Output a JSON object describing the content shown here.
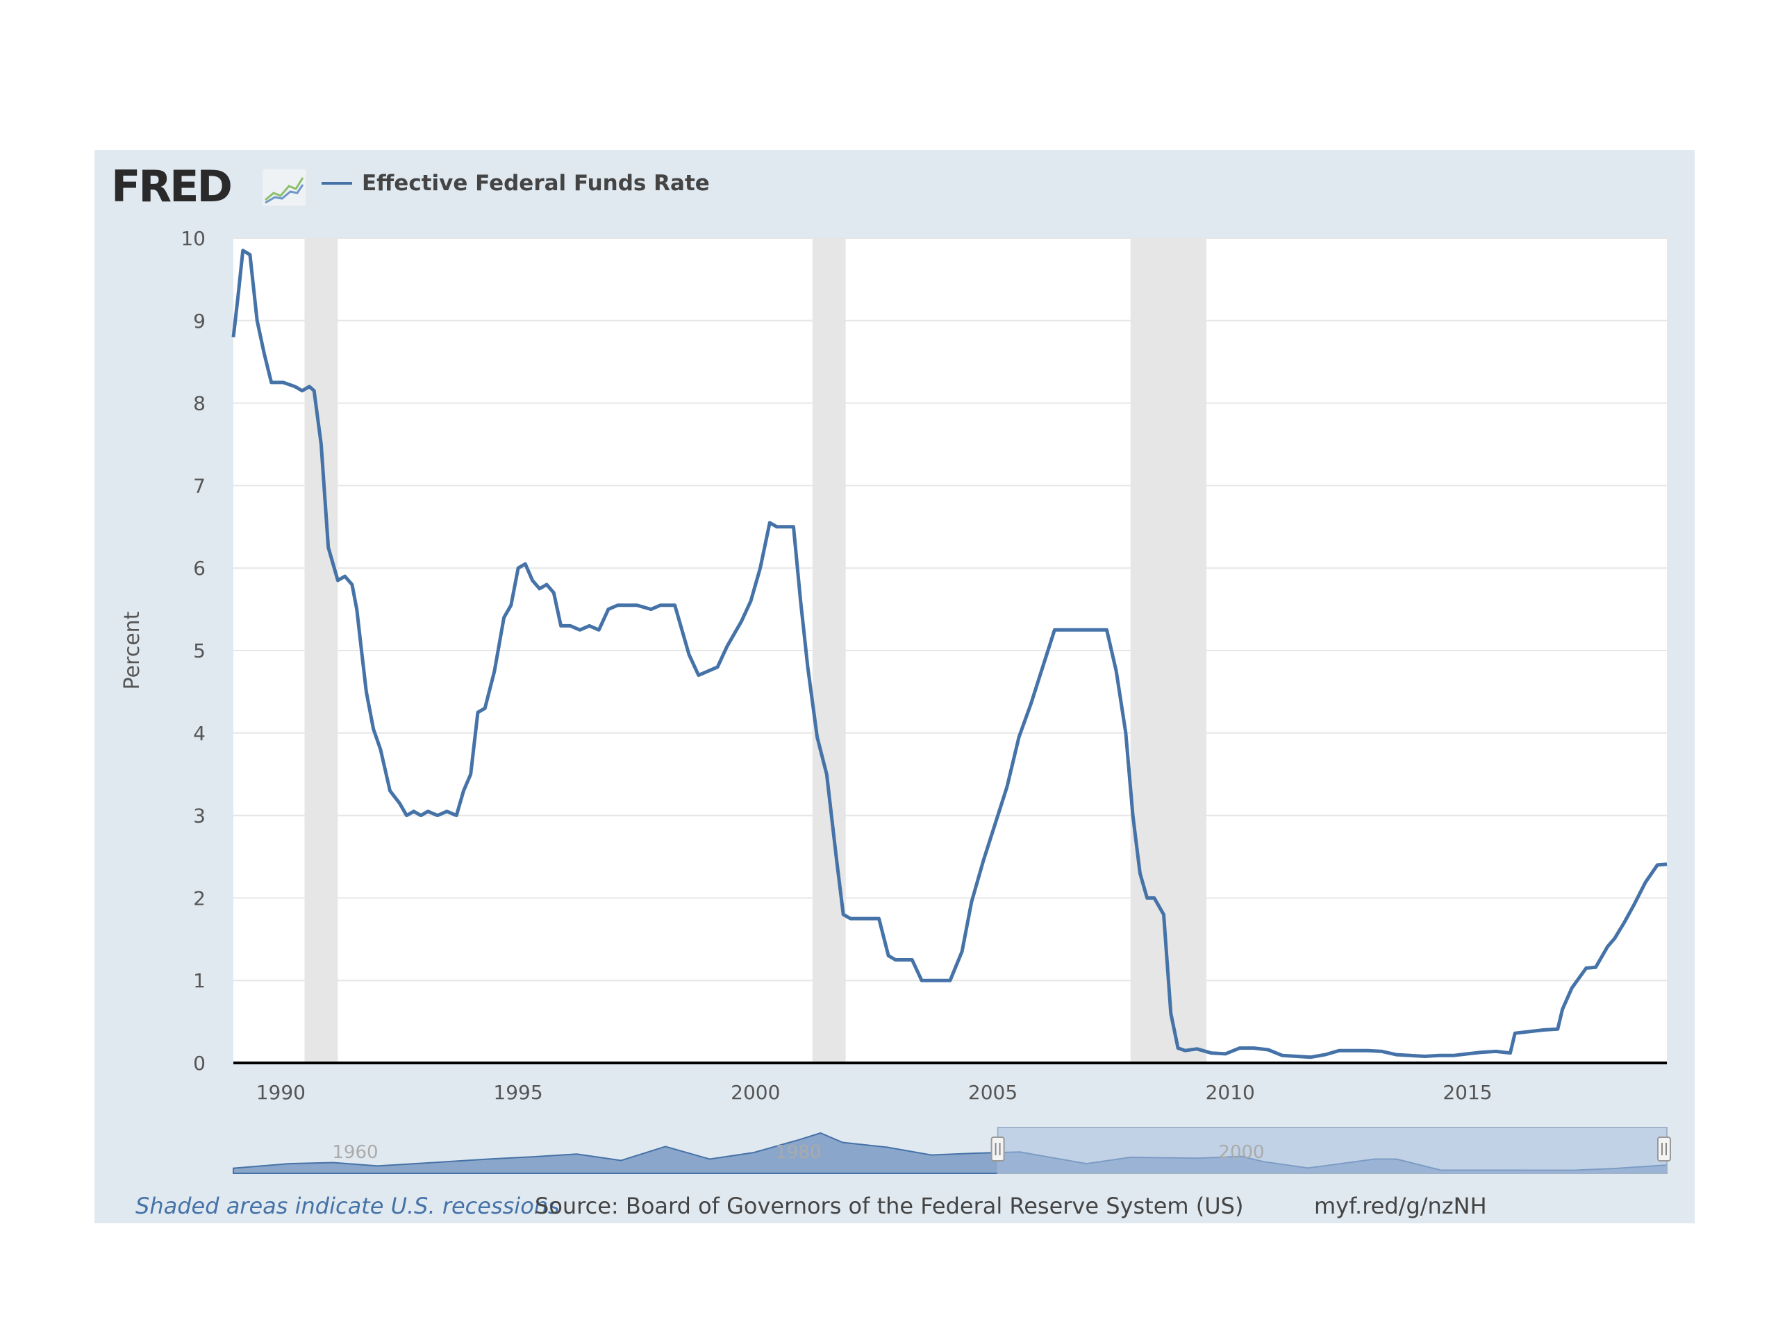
{
  "brand": {
    "logo_text": "FRED",
    "logo_icon": "fred-graph-icon"
  },
  "colors": {
    "line": "#4572a7",
    "panel": "#e1e9f0",
    "recession": "#e6e6e6",
    "navigator_fill": "#6d8fbf",
    "navigator_window": "#a9bfdf"
  },
  "legend": {
    "series_label": "Effective Federal Funds Rate"
  },
  "chart_data": {
    "type": "line",
    "ylabel": "Percent",
    "ylim": [
      0,
      10
    ],
    "yticks": [
      "0",
      "1",
      "2",
      "3",
      "4",
      "5",
      "6",
      "7",
      "8",
      "9",
      "10"
    ],
    "xlim": [
      1989.0,
      2019.2
    ],
    "xticks": [
      "1990",
      "1995",
      "2000",
      "2005",
      "2010",
      "2015"
    ],
    "grid": true,
    "recessions": [
      [
        1990.5,
        1991.2
      ],
      [
        2001.2,
        2001.9
      ],
      [
        2007.9,
        2009.5
      ]
    ],
    "series": [
      {
        "name": "Effective Federal Funds Rate",
        "x": [
          1989.0,
          1989.1,
          1989.2,
          1989.35,
          1989.5,
          1989.65,
          1989.8,
          1989.95,
          1990.05,
          1990.3,
          1990.45,
          1990.6,
          1990.7,
          1990.85,
          1991.0,
          1991.2,
          1991.35,
          1991.5,
          1991.6,
          1991.7,
          1991.8,
          1991.95,
          1992.1,
          1992.3,
          1992.5,
          1992.65,
          1992.8,
          1992.95,
          1993.1,
          1993.3,
          1993.5,
          1993.7,
          1993.85,
          1994.0,
          1994.15,
          1994.3,
          1994.5,
          1994.7,
          1994.85,
          1995.0,
          1995.15,
          1995.3,
          1995.45,
          1995.6,
          1995.75,
          1995.9,
          1996.1,
          1996.3,
          1996.5,
          1996.7,
          1996.9,
          1997.1,
          1997.3,
          1997.5,
          1997.8,
          1998.0,
          1998.3,
          1998.6,
          1998.8,
          1999.0,
          1999.2,
          1999.4,
          1999.55,
          1999.7,
          1999.9,
          2000.1,
          2000.3,
          2000.45,
          2000.6,
          2000.8,
          2000.95,
          2001.1,
          2001.3,
          2001.5,
          2001.7,
          2001.85,
          2002.0,
          2002.2,
          2002.4,
          2002.6,
          2002.8,
          2002.95,
          2003.1,
          2003.3,
          2003.5,
          2003.7,
          2003.9,
          2004.1,
          2004.35,
          2004.55,
          2004.8,
          2005.05,
          2005.3,
          2005.55,
          2005.8,
          2006.05,
          2006.3,
          2006.5,
          2006.8,
          2007.1,
          2007.4,
          2007.6,
          2007.8,
          2007.95,
          2008.1,
          2008.25,
          2008.4,
          2008.6,
          2008.75,
          2008.9,
          2009.05,
          2009.3,
          2009.6,
          2009.9,
          2010.2,
          2010.5,
          2010.8,
          2011.1,
          2011.4,
          2011.7,
          2012.0,
          2012.3,
          2012.6,
          2012.9,
          2013.2,
          2013.5,
          2013.8,
          2014.1,
          2014.4,
          2014.7,
          2015.0,
          2015.3,
          2015.6,
          2015.9,
          2016.0,
          2016.3,
          2016.6,
          2016.9,
          2017.0,
          2017.2,
          2017.5,
          2017.7,
          2017.95,
          2018.1,
          2018.3,
          2018.5,
          2018.75,
          2019.0,
          2019.2
        ],
        "values": [
          8.8,
          9.3,
          9.85,
          9.8,
          9.0,
          8.6,
          8.25,
          8.25,
          8.25,
          8.2,
          8.15,
          8.2,
          8.15,
          7.5,
          6.25,
          5.85,
          5.9,
          5.8,
          5.5,
          5.0,
          4.5,
          4.05,
          3.8,
          3.3,
          3.15,
          3.0,
          3.05,
          3.0,
          3.05,
          3.0,
          3.05,
          3.0,
          3.3,
          3.5,
          4.25,
          4.3,
          4.75,
          5.4,
          5.55,
          6.0,
          6.05,
          5.85,
          5.75,
          5.8,
          5.7,
          5.3,
          5.3,
          5.25,
          5.3,
          5.25,
          5.5,
          5.55,
          5.55,
          5.55,
          5.5,
          5.55,
          5.55,
          4.95,
          4.7,
          4.75,
          4.8,
          5.05,
          5.2,
          5.35,
          5.6,
          6.0,
          6.55,
          6.5,
          6.5,
          6.5,
          5.6,
          4.8,
          3.95,
          3.5,
          2.5,
          1.8,
          1.75,
          1.75,
          1.75,
          1.75,
          1.3,
          1.25,
          1.25,
          1.25,
          1.0,
          1.0,
          1.0,
          1.0,
          1.35,
          1.95,
          2.45,
          2.9,
          3.35,
          3.95,
          4.35,
          4.8,
          5.25,
          5.25,
          5.25,
          5.25,
          5.25,
          4.75,
          4.0,
          3.0,
          2.3,
          2.0,
          2.0,
          1.8,
          0.6,
          0.18,
          0.15,
          0.17,
          0.12,
          0.11,
          0.18,
          0.18,
          0.16,
          0.09,
          0.08,
          0.07,
          0.1,
          0.15,
          0.15,
          0.15,
          0.14,
          0.1,
          0.09,
          0.08,
          0.09,
          0.09,
          0.11,
          0.13,
          0.14,
          0.12,
          0.36,
          0.38,
          0.4,
          0.41,
          0.65,
          0.91,
          1.15,
          1.16,
          1.41,
          1.51,
          1.7,
          1.91,
          2.19,
          2.4,
          2.41
        ]
      }
    ]
  },
  "navigator": {
    "labels": [
      "1960",
      "1980",
      "2000"
    ],
    "label_years": [
      1960,
      1980,
      2000
    ],
    "range": [
      1954.5,
      2019.2
    ],
    "window": [
      1989.0,
      2019.2
    ],
    "profile_x": [
      1954.5,
      1957,
      1959,
      1961,
      1963,
      1966,
      1968,
      1970,
      1972,
      1974,
      1976,
      1978,
      1980,
      1981,
      1982,
      1984,
      1986,
      1988,
      1990,
      1993,
      1995,
      1998,
      2000,
      2001,
      2003,
      2006,
      2007,
      2009,
      2012,
      2015,
      2017,
      2019.2
    ],
    "profile_y": [
      1.0,
      3.0,
      3.5,
      2.0,
      3.2,
      5.0,
      6.0,
      7.2,
      4.4,
      10.5,
      5.0,
      7.9,
      13.4,
      16.4,
      12.3,
      10.2,
      6.8,
      7.6,
      8.1,
      3.0,
      5.8,
      5.4,
      6.2,
      3.9,
      1.1,
      5.0,
      5.0,
      0.16,
      0.14,
      0.13,
      1.0,
      2.4
    ]
  },
  "footer": {
    "recession_note": "Shaded areas indicate U.S. recessions",
    "source": "Source: Board of Governors of the Federal Reserve System (US)",
    "link": "myf.red/g/nzNH"
  }
}
